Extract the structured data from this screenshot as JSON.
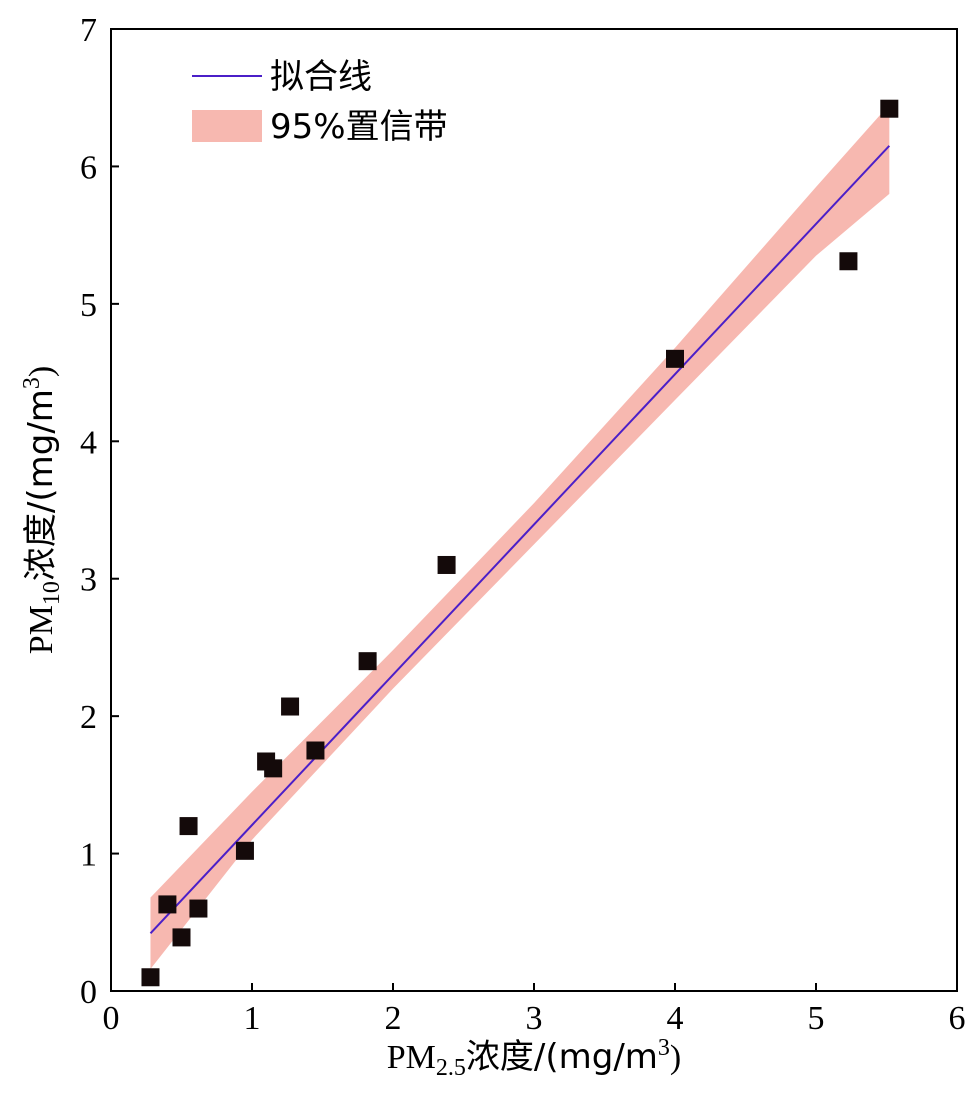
{
  "chart_data": {
    "type": "scatter",
    "xlabel": {
      "prefix": "PM",
      "sub": "2.5",
      "suffix": "浓度/(mg/m",
      "sup": "3",
      "end": ")"
    },
    "ylabel": {
      "prefix": "PM",
      "sub": "10",
      "suffix": "浓度/(mg/m",
      "sup": "3",
      "end": ")"
    },
    "xlim": [
      0,
      6
    ],
    "ylim": [
      0,
      7
    ],
    "xticks": [
      0,
      1,
      2,
      3,
      4,
      5,
      6
    ],
    "yticks": [
      0,
      1,
      2,
      3,
      4,
      5,
      6,
      7
    ],
    "grid": false,
    "legend": {
      "placement": "top-left",
      "fit_label": "拟合线",
      "band_label": "95%置信带"
    },
    "colors": {
      "fit_line": "#4b1fc8",
      "band": "#f7b8b0",
      "point": "#140a0a"
    },
    "points": [
      {
        "x": 0.28,
        "y": 0.1
      },
      {
        "x": 0.4,
        "y": 0.63
      },
      {
        "x": 0.5,
        "y": 0.39
      },
      {
        "x": 0.55,
        "y": 1.2
      },
      {
        "x": 0.62,
        "y": 0.6
      },
      {
        "x": 0.95,
        "y": 1.02
      },
      {
        "x": 1.1,
        "y": 1.67
      },
      {
        "x": 1.15,
        "y": 1.62
      },
      {
        "x": 1.27,
        "y": 2.07
      },
      {
        "x": 1.45,
        "y": 1.75
      },
      {
        "x": 1.82,
        "y": 2.4
      },
      {
        "x": 2.38,
        "y": 3.1
      },
      {
        "x": 4.0,
        "y": 4.6
      },
      {
        "x": 5.23,
        "y": 5.31
      },
      {
        "x": 5.52,
        "y": 6.42
      }
    ],
    "fit_line": {
      "x": [
        0.28,
        5.52
      ],
      "y": [
        0.42,
        6.15
      ]
    },
    "confidence_band": {
      "x": [
        0.28,
        1.0,
        2.0,
        3.0,
        4.0,
        5.0,
        5.52
      ],
      "upper": [
        0.68,
        1.45,
        2.48,
        3.55,
        4.68,
        5.85,
        6.45
      ],
      "lower": [
        0.16,
        1.1,
        2.2,
        3.25,
        4.3,
        5.35,
        5.8
      ]
    }
  }
}
